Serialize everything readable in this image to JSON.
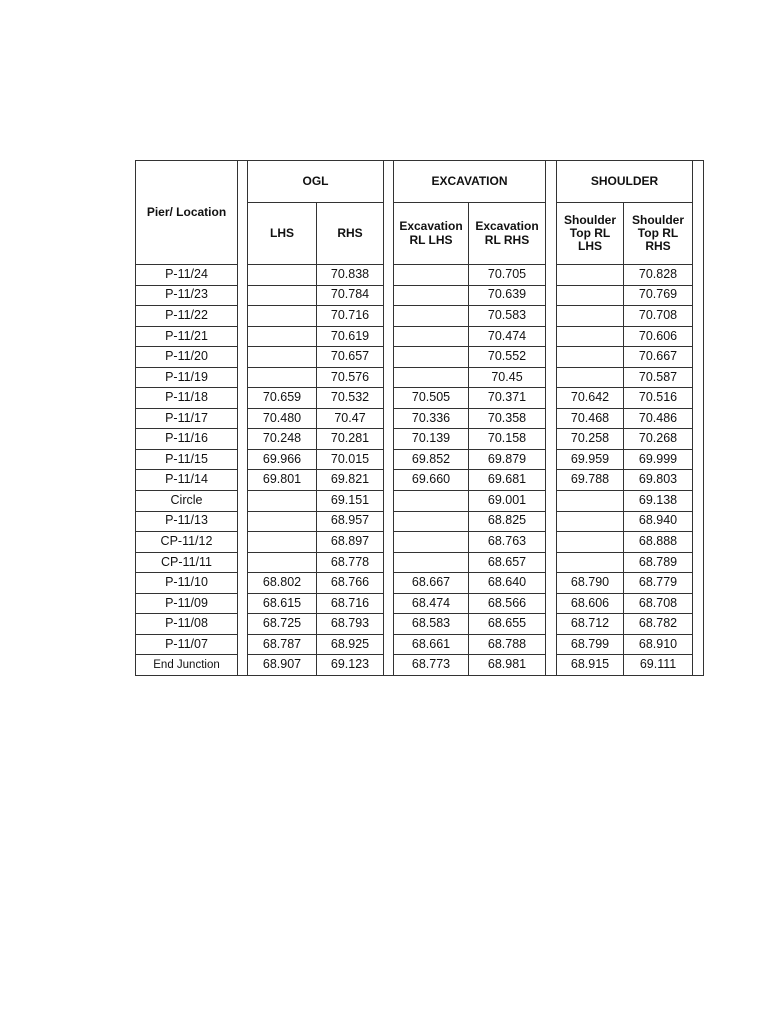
{
  "table": {
    "headers": {
      "location": "Pier/ Location",
      "groups": [
        "OGL",
        "EXCAVATION",
        "SHOULDER"
      ],
      "sub": [
        "LHS",
        "RHS",
        "Excavation RL LHS",
        "Excavation RL RHS",
        "Shoulder Top RL LHS",
        "Shoulder Top RL RHS"
      ]
    },
    "rows": [
      [
        "P-11/24",
        "",
        "70.838",
        "",
        "70.705",
        "",
        "70.828"
      ],
      [
        "P-11/23",
        "",
        "70.784",
        "",
        "70.639",
        "",
        "70.769"
      ],
      [
        "P-11/22",
        "",
        "70.716",
        "",
        "70.583",
        "",
        "70.708"
      ],
      [
        "P-11/21",
        "",
        "70.619",
        "",
        "70.474",
        "",
        "70.606"
      ],
      [
        "P-11/20",
        "",
        "70.657",
        "",
        "70.552",
        "",
        "70.667"
      ],
      [
        "P-11/19",
        "",
        "70.576",
        "",
        "70.45",
        "",
        "70.587"
      ],
      [
        "P-11/18",
        "70.659",
        "70.532",
        "70.505",
        "70.371",
        "70.642",
        "70.516"
      ],
      [
        "P-11/17",
        "70.480",
        "70.47",
        "70.336",
        "70.358",
        "70.468",
        "70.486"
      ],
      [
        "P-11/16",
        "70.248",
        "70.281",
        "70.139",
        "70.158",
        "70.258",
        "70.268"
      ],
      [
        "P-11/15",
        "69.966",
        "70.015",
        "69.852",
        "69.879",
        "69.959",
        "69.999"
      ],
      [
        "P-11/14",
        "69.801",
        "69.821",
        "69.660",
        "69.681",
        "69.788",
        "69.803"
      ],
      [
        "Circle",
        "",
        "69.151",
        "",
        "69.001",
        "",
        "69.138"
      ],
      [
        "P-11/13",
        "",
        "68.957",
        "",
        "68.825",
        "",
        "68.940"
      ],
      [
        "CP-11/12",
        "",
        "68.897",
        "",
        "68.763",
        "",
        "68.888"
      ],
      [
        "CP-11/11",
        "",
        "68.778",
        "",
        "68.657",
        "",
        "68.789"
      ],
      [
        "P-11/10",
        "68.802",
        "68.766",
        "68.667",
        "68.640",
        "68.790",
        "68.779"
      ],
      [
        "P-11/09",
        "68.615",
        "68.716",
        "68.474",
        "68.566",
        "68.606",
        "68.708"
      ],
      [
        "P-11/08",
        "68.725",
        "68.793",
        "68.583",
        "68.655",
        "68.712",
        "68.782"
      ],
      [
        "P-11/07",
        "68.787",
        "68.925",
        "68.661",
        "68.788",
        "68.799",
        "68.910"
      ],
      [
        "End Junction",
        "68.907",
        "69.123",
        "68.773",
        "68.981",
        "68.915",
        "69.111"
      ]
    ]
  }
}
